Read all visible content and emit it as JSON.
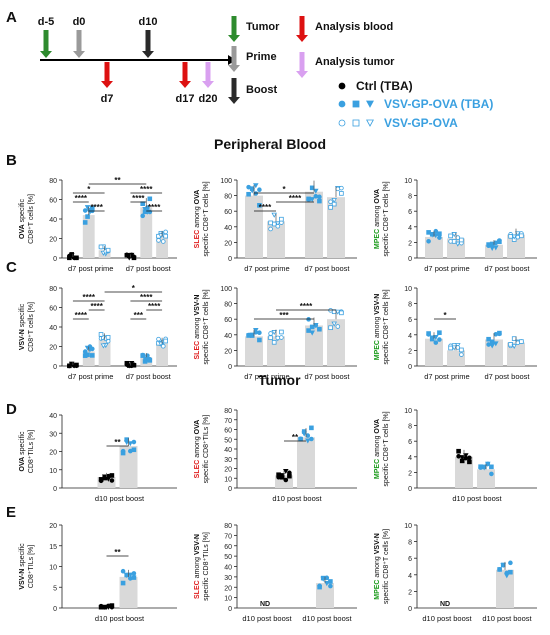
{
  "panels": {
    "A": "A",
    "B": "B",
    "C": "C",
    "D": "D",
    "E": "E"
  },
  "section_titles": {
    "blood": "Peripheral Blood",
    "tumor": "Tumor"
  },
  "colors": {
    "vsv_gp_ova": "#3aa0e0",
    "ctrl": "#000000",
    "tumor_arrow": "#2e8b2e",
    "analysis_blood": "#dd1111",
    "analysis_tumor": "#d9a0f0",
    "prime": "#9a9a9a",
    "boost": "#2a2a2a",
    "bar": "#d9d9d9",
    "red_text": "#e02020",
    "green_text": "#1a9a1a"
  },
  "timeline": {
    "marks": [
      {
        "label": "d-5",
        "color": "#2e8b2e",
        "dir": "down"
      },
      {
        "label": "d0",
        "color": "#9a9a9a",
        "dir": "down"
      },
      {
        "label": "d10",
        "color": "#2a2a2a",
        "dir": "down"
      },
      {
        "label": "d7",
        "color": "#dd1111",
        "dir": "up"
      },
      {
        "label": "d17",
        "color": "#dd1111",
        "dir": "up"
      },
      {
        "label": "d20",
        "color": "#d9a0f0",
        "dir": "up"
      }
    ],
    "key": [
      {
        "label": "Tumor",
        "color": "#2e8b2e"
      },
      {
        "label": "Prime",
        "color": "#9a9a9a"
      },
      {
        "label": "Boost",
        "color": "#2a2a2a"
      },
      {
        "label": "Analysis blood",
        "color": "#dd1111"
      },
      {
        "label": "Analysis tumor",
        "color": "#d9a0f0"
      }
    ]
  },
  "legend": [
    {
      "label": "Ctrl (TBA)",
      "color": "#000000",
      "style": "ctrl"
    },
    {
      "label": "VSV-GP-OVA (TBA)",
      "color": "#3aa0e0",
      "style": "filled"
    },
    {
      "label": "VSV-GP-OVA",
      "color": "#3aa0e0",
      "style": "open"
    }
  ],
  "chart_data": [
    {
      "id": "B1",
      "type": "bar",
      "ylabel_parts": [
        {
          "t": "OVA",
          "c": "#111"
        },
        {
          "t": " specific",
          "c": "#111"
        }
      ],
      "ylabel2": "CD8⁺T cells [%]",
      "ylim": [
        0,
        80
      ],
      "yticks": [
        0,
        20,
        40,
        60,
        80
      ],
      "groups": [
        {
          "label": "d7 post prime",
          "bars": [
            {
              "v": 1,
              "s": "ctrl"
            },
            {
              "v": 44,
              "s": "filled"
            },
            {
              "v": 8,
              "s": "open"
            }
          ]
        },
        {
          "label": "d7 post boost",
          "bars": [
            {
              "v": 0.5,
              "s": "ctrl"
            },
            {
              "v": 52,
              "s": "filled"
            },
            {
              "v": 22,
              "s": "open"
            }
          ]
        }
      ],
      "sig": [
        {
          "a": 1,
          "b": 2,
          "lvl": 1,
          "t": "****"
        },
        {
          "a": 0,
          "b": 1,
          "lvl": 2,
          "t": "****"
        },
        {
          "a": 0,
          "b": 2,
          "lvl": 3,
          "t": "*"
        },
        {
          "a": 4,
          "b": 5,
          "lvl": 1,
          "t": "****"
        },
        {
          "a": 3,
          "b": 4,
          "lvl": 2,
          "t": "****"
        },
        {
          "a": 3,
          "b": 5,
          "lvl": 3,
          "t": "****"
        },
        {
          "a": 1,
          "b": 4,
          "lvl": 4,
          "t": "**"
        }
      ]
    },
    {
      "id": "B2",
      "type": "bar",
      "ylabel_parts": [
        {
          "t": "SLEC",
          "c": "#e02020"
        },
        {
          "t": " among ",
          "c": "#111"
        },
        {
          "t": "OVA",
          "c": "#111"
        }
      ],
      "ylabel2": "specific CD8⁺T cells [%]",
      "ylim": [
        0,
        100
      ],
      "yticks": [
        0,
        20,
        40,
        60,
        80,
        100
      ],
      "groups": [
        {
          "label": "d7 post prime",
          "bars": [
            {
              "v": 80,
              "s": "filled"
            },
            {
              "v": 47,
              "s": "open"
            }
          ]
        },
        {
          "label": "d7 post boost",
          "bars": [
            {
              "v": 85,
              "s": "filled"
            },
            {
              "v": 78,
              "s": "open"
            }
          ]
        }
      ],
      "sig": [
        {
          "a": 0,
          "b": 1,
          "lvl": 1,
          "t": "****"
        },
        {
          "a": 1,
          "b": 2,
          "lvl": 2,
          "t": "****"
        },
        {
          "a": 0,
          "b": 2,
          "lvl": 3,
          "t": "*"
        }
      ]
    },
    {
      "id": "B3",
      "type": "bar",
      "ylabel_parts": [
        {
          "t": "MPEC",
          "c": "#1a9a1a"
        },
        {
          "t": " among ",
          "c": "#111"
        },
        {
          "t": "OVA",
          "c": "#111"
        }
      ],
      "ylabel2": "specific CD8⁺T cells [%]",
      "ylim": [
        0,
        10
      ],
      "yticks": [
        0,
        2,
        4,
        6,
        8,
        10
      ],
      "groups": [
        {
          "label": "d7 post prime",
          "bars": [
            {
              "v": 2.7,
              "s": "filled"
            },
            {
              "v": 2.5,
              "s": "open"
            }
          ]
        },
        {
          "label": "d7 post boost",
          "bars": [
            {
              "v": 1.7,
              "s": "filled"
            },
            {
              "v": 3,
              "s": "open"
            }
          ]
        }
      ],
      "sig": []
    },
    {
      "id": "C1",
      "type": "bar",
      "ylabel_parts": [
        {
          "t": "VSV-N",
          "c": "#111"
        },
        {
          "t": " specific",
          "c": "#111"
        }
      ],
      "ylabel2": "CD8⁺T cells [%]",
      "ylim": [
        0,
        80
      ],
      "yticks": [
        0,
        20,
        40,
        60,
        80
      ],
      "groups": [
        {
          "label": "d7 post prime",
          "bars": [
            {
              "v": 1,
              "s": "ctrl"
            },
            {
              "v": 15,
              "s": "filled"
            },
            {
              "v": 27,
              "s": "open"
            }
          ]
        },
        {
          "label": "d7 post boost",
          "bars": [
            {
              "v": 0.5,
              "s": "ctrl"
            },
            {
              "v": 9,
              "s": "filled"
            },
            {
              "v": 23,
              "s": "open"
            }
          ]
        }
      ],
      "sig": [
        {
          "a": 0,
          "b": 1,
          "lvl": 1,
          "t": "****"
        },
        {
          "a": 1,
          "b": 2,
          "lvl": 2,
          "t": "****"
        },
        {
          "a": 0,
          "b": 2,
          "lvl": 3,
          "t": "****"
        },
        {
          "a": 3,
          "b": 4,
          "lvl": 1,
          "t": "***"
        },
        {
          "a": 4,
          "b": 5,
          "lvl": 2,
          "t": "****"
        },
        {
          "a": 3,
          "b": 5,
          "lvl": 3,
          "t": "****"
        },
        {
          "a": 2,
          "b": 5,
          "lvl": 4,
          "t": "*"
        }
      ]
    },
    {
      "id": "C2",
      "type": "bar",
      "ylabel_parts": [
        {
          "t": "SLEC",
          "c": "#e02020"
        },
        {
          "t": " among ",
          "c": "#111"
        },
        {
          "t": "VSV-N",
          "c": "#111"
        }
      ],
      "ylabel2": "specific CD8⁺T cells [%]",
      "ylim": [
        0,
        100
      ],
      "yticks": [
        0,
        20,
        40,
        60,
        80,
        100
      ],
      "groups": [
        {
          "label": "d7 post prime",
          "bars": [
            {
              "v": 38,
              "s": "filled"
            },
            {
              "v": 38,
              "s": "open"
            }
          ]
        },
        {
          "label": "d7 post boost",
          "bars": [
            {
              "v": 52,
              "s": "filled"
            },
            {
              "v": 60,
              "s": "open"
            }
          ]
        }
      ],
      "sig": [
        {
          "a": 0,
          "b": 2,
          "lvl": 1,
          "t": "***"
        },
        {
          "a": 1,
          "b": 3,
          "lvl": 2,
          "t": "****"
        }
      ]
    },
    {
      "id": "C3",
      "type": "bar",
      "ylabel_parts": [
        {
          "t": "MPEC",
          "c": "#1a9a1a"
        },
        {
          "t": " among ",
          "c": "#111"
        },
        {
          "t": "VSV-N",
          "c": "#111"
        }
      ],
      "ylabel2": "specific CD8⁺T cells [%]",
      "ylim": [
        0,
        10
      ],
      "yticks": [
        0,
        2,
        4,
        6,
        8,
        10
      ],
      "groups": [
        {
          "label": "d7 post prime",
          "bars": [
            {
              "v": 3.5,
              "s": "filled"
            },
            {
              "v": 2,
              "s": "open"
            }
          ]
        },
        {
          "label": "d7 post boost",
          "bars": [
            {
              "v": 3.4,
              "s": "filled"
            },
            {
              "v": 3,
              "s": "open"
            }
          ]
        }
      ],
      "sig": [
        {
          "a": 0,
          "b": 1,
          "lvl": 1,
          "t": "*"
        }
      ]
    },
    {
      "id": "D1",
      "type": "bar",
      "ylabel_parts": [
        {
          "t": "OVA",
          "c": "#111"
        },
        {
          "t": " specific",
          "c": "#111"
        }
      ],
      "ylabel2": "CD8⁺TILs [%]",
      "ylim": [
        0,
        40
      ],
      "yticks": [
        0,
        10,
        20,
        30,
        40
      ],
      "groups": [
        {
          "label": "d10 post boost",
          "bars": [
            {
              "v": 6,
              "s": "ctrl"
            },
            {
              "v": 23,
              "s": "filled"
            }
          ]
        }
      ],
      "sig": [
        {
          "a": 0,
          "b": 1,
          "lvl": 1,
          "t": "**"
        }
      ]
    },
    {
      "id": "D2",
      "type": "bar",
      "ylabel_parts": [
        {
          "t": "SLEC",
          "c": "#e02020"
        },
        {
          "t": " among ",
          "c": "#111"
        },
        {
          "t": "OVA",
          "c": "#111"
        }
      ],
      "ylabel2": "specific CD8⁺TILs [%]",
      "ylim": [
        0,
        80
      ],
      "yticks": [
        0,
        10,
        20,
        30,
        40,
        50,
        60,
        70,
        80
      ],
      "groups": [
        {
          "label": "d10 post boost",
          "bars": [
            {
              "v": 13,
              "s": "ctrl"
            },
            {
              "v": 52,
              "s": "filled"
            }
          ]
        }
      ],
      "sig": [
        {
          "a": 0,
          "b": 1,
          "lvl": 1,
          "t": "**"
        }
      ]
    },
    {
      "id": "D3",
      "type": "bar",
      "ylabel_parts": [
        {
          "t": "MPEC",
          "c": "#1a9a1a"
        },
        {
          "t": " among ",
          "c": "#111"
        },
        {
          "t": "OVA",
          "c": "#111"
        }
      ],
      "ylabel2": "specific CD8⁺T cells [%]",
      "ylim": [
        0,
        10
      ],
      "yticks": [
        0,
        2,
        4,
        6,
        8,
        10
      ],
      "groups": [
        {
          "label": "d10 post boost",
          "bars": [
            {
              "v": 4,
              "s": "ctrl"
            },
            {
              "v": 2.4,
              "s": "filled"
            }
          ]
        }
      ],
      "sig": []
    },
    {
      "id": "E1",
      "type": "bar",
      "ylabel_parts": [
        {
          "t": "VSV-N",
          "c": "#111"
        },
        {
          "t": " specific",
          "c": "#111"
        }
      ],
      "ylabel2": "CD8⁺TILs [%]",
      "ylim": [
        0,
        20
      ],
      "yticks": [
        0,
        5,
        10,
        15,
        20
      ],
      "groups": [
        {
          "label": "d10 post boost",
          "bars": [
            {
              "v": 0,
              "s": "ctrl"
            },
            {
              "v": 7.5,
              "s": "filled"
            }
          ]
        }
      ],
      "sig": [
        {
          "a": 0,
          "b": 1,
          "lvl": 1,
          "t": "**"
        }
      ]
    },
    {
      "id": "E2",
      "type": "bar",
      "ylabel_parts": [
        {
          "t": "SLEC",
          "c": "#e02020"
        },
        {
          "t": " among ",
          "c": "#111"
        },
        {
          "t": "VSV-N",
          "c": "#111"
        }
      ],
      "ylabel2": "specific CD8⁺TILs [%]",
      "ylim": [
        0,
        80
      ],
      "yticks": [
        0,
        10,
        20,
        30,
        40,
        50,
        60,
        70,
        80
      ],
      "groups": [
        {
          "label": "d10 post boost",
          "bars": [
            {
              "v": null,
              "s": "nd",
              "t": "ND"
            }
          ]
        },
        {
          "label": "d10 post boost",
          "bars": [
            {
              "v": 24,
              "s": "filled"
            }
          ]
        }
      ],
      "sig": []
    },
    {
      "id": "E3",
      "type": "bar",
      "ylabel_parts": [
        {
          "t": "MPEC",
          "c": "#1a9a1a"
        },
        {
          "t": " among ",
          "c": "#111"
        },
        {
          "t": "VSV-N",
          "c": "#111"
        }
      ],
      "ylabel2": "specific CD8⁺T cells [%]",
      "ylim": [
        0,
        10
      ],
      "yticks": [
        0,
        2,
        4,
        6,
        8,
        10
      ],
      "groups": [
        {
          "label": "d10 post boost",
          "bars": [
            {
              "v": null,
              "s": "nd",
              "t": "ND"
            }
          ]
        },
        {
          "label": "d10 post boost",
          "bars": [
            {
              "v": 4.6,
              "s": "filled"
            }
          ]
        }
      ],
      "sig": []
    }
  ]
}
